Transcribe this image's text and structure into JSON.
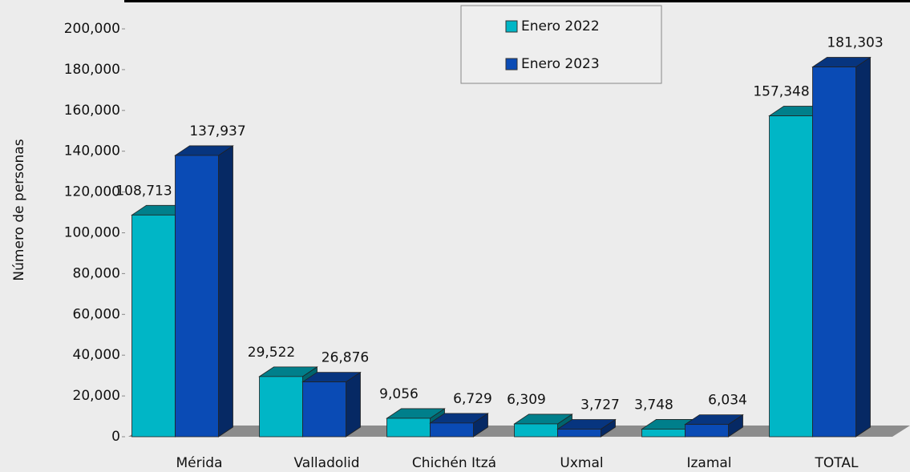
{
  "chart_data": {
    "type": "bar3d",
    "y_axis_label": "Número de personas",
    "categories": [
      "Mérida",
      "Valladolid",
      "Chichén Itzá",
      "Uxmal",
      "Izamal",
      "TOTAL"
    ],
    "series": [
      {
        "name": "Enero 2022",
        "color": "#00b6c6",
        "values": [
          108713,
          29522,
          9056,
          6309,
          3748,
          157348
        ],
        "value_labels": [
          "108,713",
          "29,522",
          "9,056",
          "6,309",
          "3,748",
          "157,348"
        ]
      },
      {
        "name": "Enero 2023",
        "color": "#0a4bb5",
        "values": [
          137937,
          26876,
          6729,
          3727,
          6034,
          181303
        ],
        "value_labels": [
          "137,937",
          "26,876",
          "6,729",
          "3,727",
          "6,034",
          "181,303"
        ]
      }
    ],
    "ylim": [
      0,
      200000
    ],
    "yticks": [
      0,
      {
        "value": 20000,
        "label": "20,000"
      },
      {
        "value": 40000,
        "label": "40,000"
      },
      {
        "value": 60000,
        "label": "60,000"
      },
      {
        "value": 80000,
        "label": "80,000"
      },
      {
        "value": 100000,
        "label": "100,000"
      },
      {
        "value": 120000,
        "label": "120,000"
      },
      {
        "value": 140000,
        "label": "140,000"
      },
      {
        "value": 160000,
        "label": "160,000"
      },
      {
        "value": 180000,
        "label": "180,000"
      },
      {
        "value": 200000,
        "label": "200,000"
      }
    ],
    "legend": "top"
  }
}
